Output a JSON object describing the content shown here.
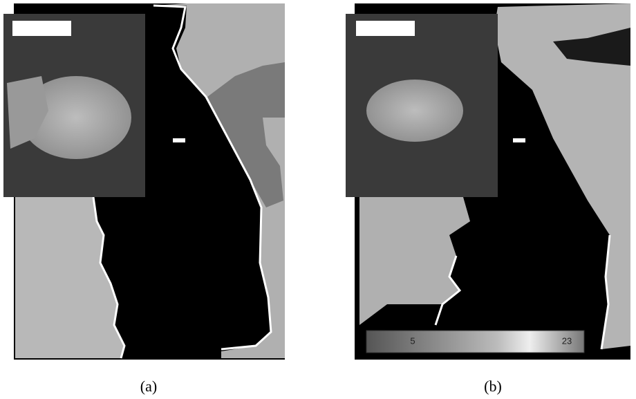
{
  "figure": {
    "panels": [
      {
        "label": "(a)"
      },
      {
        "label": "(b)",
        "colorbar": {
          "labels": [
            "5",
            "23"
          ]
        }
      }
    ]
  }
}
